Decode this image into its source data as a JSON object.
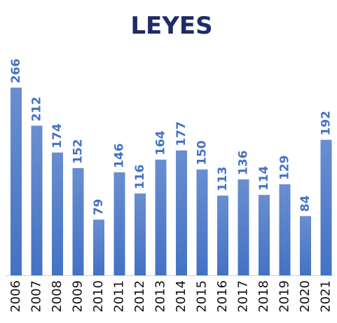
{
  "chart_data": {
    "type": "bar",
    "title": "LEYES",
    "categories": [
      "2006",
      "2007",
      "2008",
      "2009",
      "2010",
      "2011",
      "2012",
      "2013",
      "2014",
      "2015",
      "2016",
      "2017",
      "2018",
      "2019",
      "2020",
      "2021"
    ],
    "values": [
      266,
      212,
      174,
      152,
      79,
      146,
      116,
      164,
      177,
      150,
      113,
      136,
      114,
      129,
      84,
      192
    ],
    "color": "#4472c4"
  }
}
